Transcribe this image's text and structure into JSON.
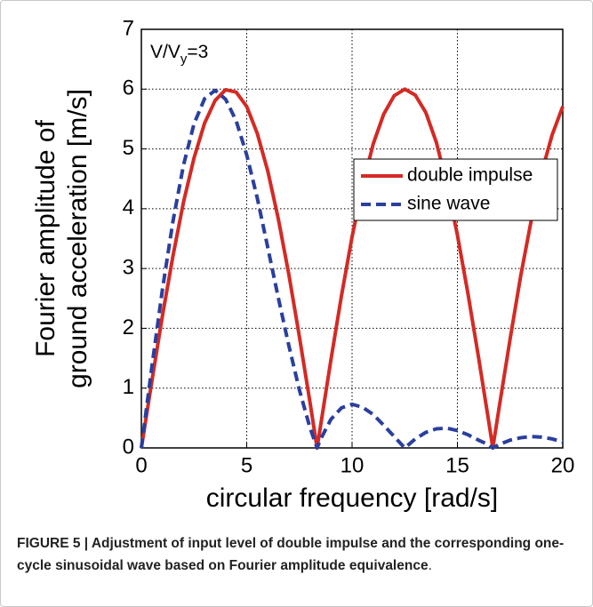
{
  "chart_data": {
    "type": "line",
    "annotation": {
      "text": "V/V",
      "sub": "y",
      "tail": "=3"
    },
    "xlabel": "circular frequency [rad/s]",
    "ylabel": [
      "Fourier amplitude of",
      "ground acceleration [m/s]"
    ],
    "x": [
      0,
      0.5,
      1,
      1.5,
      2,
      2.5,
      3,
      3.5,
      4,
      4.5,
      5,
      5.5,
      6,
      6.5,
      7,
      7.5,
      8,
      8.34,
      8.5,
      9,
      9.5,
      10,
      10.5,
      11,
      11.5,
      12,
      12.5,
      13,
      13.5,
      14,
      14.5,
      15,
      15.5,
      16,
      16.5,
      16.68,
      17,
      17.5,
      18,
      18.5,
      19,
      19.5,
      20
    ],
    "series": [
      {
        "name": "double impulse",
        "color": "#d42a24",
        "dash": false,
        "values": [
          0,
          1.12,
          2.21,
          3.21,
          4.11,
          4.85,
          5.43,
          5.81,
          5.99,
          5.95,
          5.71,
          5.26,
          4.63,
          3.83,
          2.9,
          1.86,
          0.77,
          0,
          0.36,
          1.48,
          2.55,
          3.53,
          4.38,
          5.08,
          5.58,
          5.89,
          6.0,
          5.9,
          5.61,
          5.11,
          4.41,
          3.56,
          2.58,
          1.52,
          0.41,
          0,
          0.72,
          1.82,
          2.87,
          3.8,
          4.61,
          5.24,
          5.71
        ]
      },
      {
        "name": "sine wave",
        "color": "#2a3f9e",
        "dash": true,
        "values": [
          0,
          1.36,
          2.65,
          3.79,
          4.73,
          5.42,
          5.84,
          5.98,
          5.83,
          5.47,
          4.9,
          4.18,
          3.35,
          2.51,
          1.71,
          0.97,
          0.34,
          0,
          0.14,
          0.48,
          0.67,
          0.73,
          0.68,
          0.56,
          0.38,
          0.19,
          0,
          0.15,
          0.26,
          0.32,
          0.33,
          0.29,
          0.22,
          0.13,
          0.05,
          0,
          0.06,
          0.13,
          0.17,
          0.19,
          0.18,
          0.15,
          0.1
        ]
      }
    ],
    "xlim": [
      0,
      20
    ],
    "ylim": [
      0,
      7
    ],
    "xticks": [
      0,
      5,
      10,
      15,
      20
    ],
    "yticks": [
      0,
      1,
      2,
      3,
      4,
      5,
      6,
      7
    ],
    "grid": true,
    "legend": "right"
  },
  "caption": {
    "label": "FIGURE 5 | Adjustment of input level of double impulse and the corresponding one-cycle sinusoidal wave based on Fourier amplitude equivalence",
    "tail": "."
  }
}
